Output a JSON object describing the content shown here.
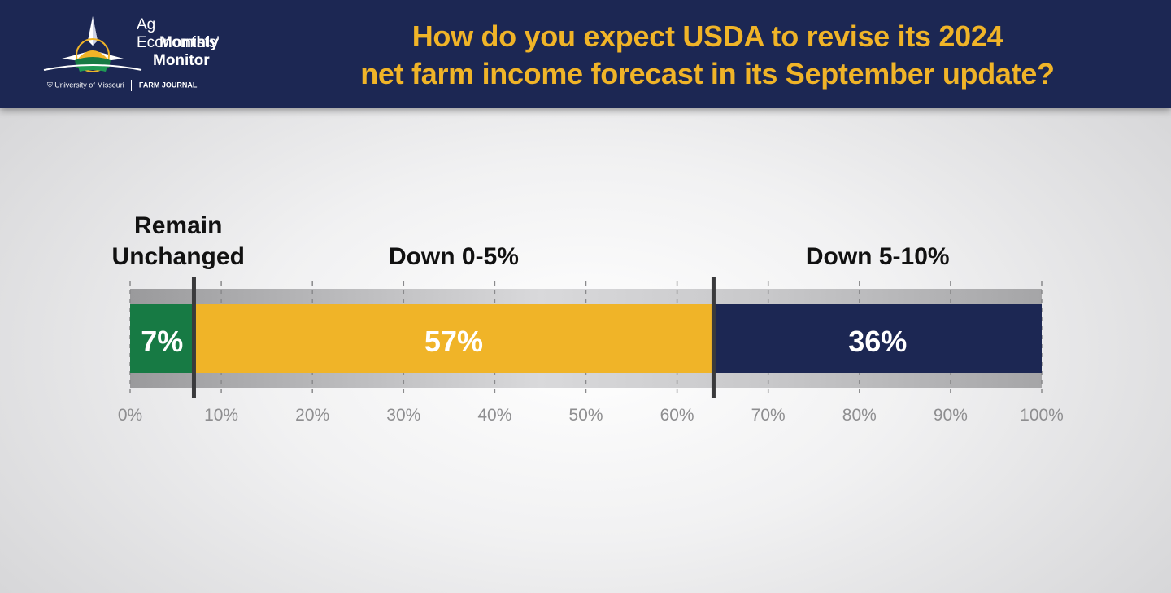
{
  "header": {
    "logo": {
      "line1": "Ag Economists'",
      "line2": "Monthly",
      "line3": "Monitor",
      "partner1": "University of Missouri",
      "partner2": "FARM JOURNAL"
    },
    "title_line1": "How do you expect USDA to revise its 2024",
    "title_line2": "net farm income forecast in its September update?"
  },
  "colors": {
    "header_bg": "#1c2753",
    "title": "#f0b428",
    "remain_unchanged": "#177a44",
    "down_0_5": "#f0b428",
    "down_5_10": "#1c2753"
  },
  "chart_data": {
    "type": "bar",
    "orientation": "horizontal-stacked",
    "title": "How do you expect USDA to revise its 2024 net farm income forecast in its September update?",
    "xlim": [
      0,
      100
    ],
    "x_ticks": [
      "0%",
      "10%",
      "20%",
      "30%",
      "40%",
      "50%",
      "60%",
      "70%",
      "80%",
      "90%",
      "100%"
    ],
    "grid": true,
    "series": [
      {
        "name": "Remain Unchanged",
        "name_lines": [
          "Remain",
          "Unchanged"
        ],
        "value": 7,
        "label": "7%",
        "color": "#177a44"
      },
      {
        "name": "Down 0-5%",
        "name_lines": [
          "Down 0-5%"
        ],
        "value": 57,
        "label": "57%",
        "color": "#f0b428"
      },
      {
        "name": "Down 5-10%",
        "name_lines": [
          "Down 5-10%"
        ],
        "value": 36,
        "label": "36%",
        "color": "#1c2753"
      }
    ]
  }
}
